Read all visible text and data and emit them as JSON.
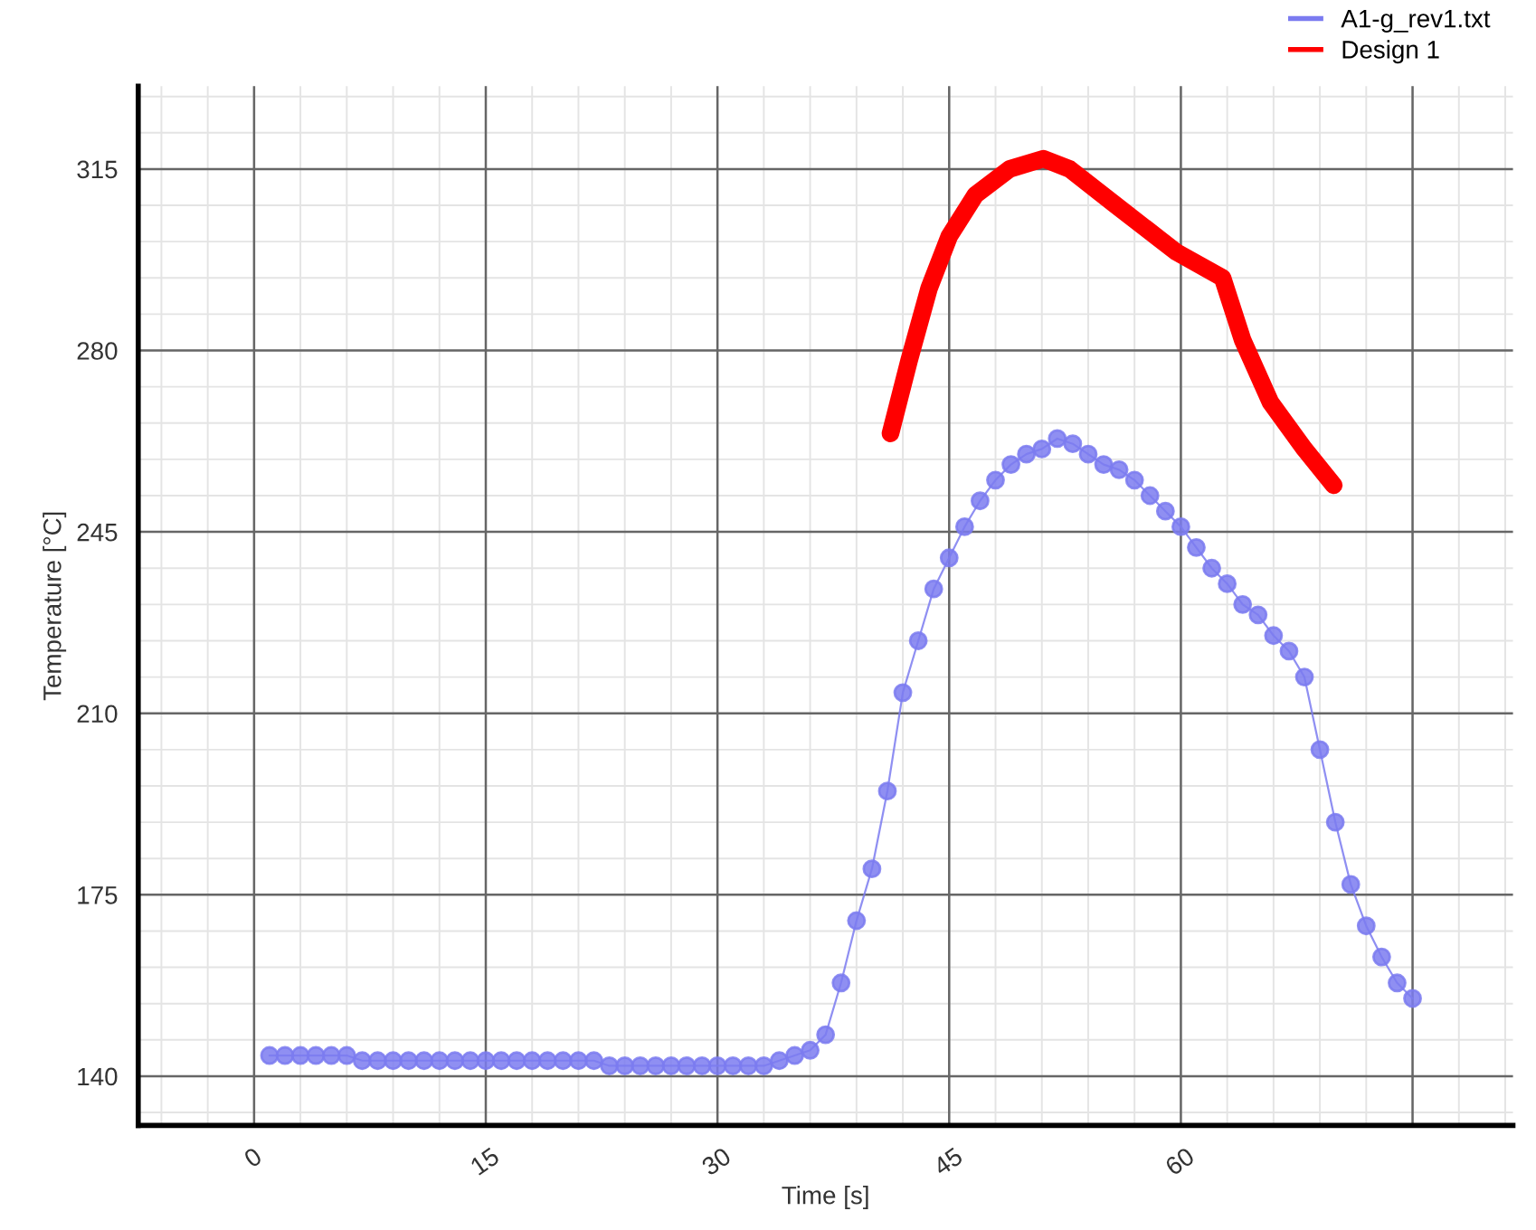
{
  "chart_data": {
    "type": "line",
    "xlabel": "Time [s]",
    "ylabel": "Temperature [°C]",
    "xlim": [
      -7.5,
      81.5
    ],
    "ylim": [
      130.5,
      331
    ],
    "xticks": [
      0,
      15,
      30,
      45,
      60,
      {
        "value": 75,
        "label": null
      }
    ],
    "yticks": [
      140,
      175,
      210,
      245,
      280,
      315
    ],
    "grid": true,
    "legend": "top right",
    "series": [
      {
        "name": "A1-g_rev1.txt",
        "color": "#7b7bf0",
        "marker": "circle",
        "x": [
          1,
          2,
          3,
          4,
          5,
          6,
          7,
          8,
          9,
          10,
          11,
          12,
          13,
          14,
          15,
          16,
          17,
          18,
          19,
          20,
          21,
          22,
          23,
          24,
          25,
          26,
          27,
          28,
          29,
          30,
          31,
          32,
          33,
          34,
          35,
          36,
          37,
          38,
          39,
          40,
          41,
          42,
          43,
          44,
          45,
          46,
          47,
          48,
          49,
          50,
          51,
          52,
          53,
          54,
          55,
          56,
          57,
          58,
          59,
          60,
          61,
          62,
          63,
          64,
          65,
          66,
          67,
          68,
          69,
          70,
          71,
          72,
          73,
          74,
          75
        ],
        "values": [
          144,
          144,
          144,
          144,
          144,
          144,
          143,
          143,
          143,
          143,
          143,
          143,
          143,
          143,
          143,
          143,
          143,
          143,
          143,
          143,
          143,
          143,
          142,
          142,
          142,
          142,
          142,
          142,
          142,
          142,
          142,
          142,
          142,
          143,
          144,
          145,
          148,
          158,
          170,
          180,
          195,
          214,
          224,
          234,
          240,
          246,
          251,
          255,
          258,
          260,
          261,
          263,
          262,
          260,
          258,
          257,
          255,
          252,
          249,
          246,
          242,
          238,
          235,
          231,
          229,
          225,
          222,
          217,
          203,
          189,
          177,
          169,
          163,
          158,
          155
        ]
      },
      {
        "name": "Design 1",
        "color": "#ff0000",
        "marker": "none",
        "x": [
          41.2,
          42.4,
          43.7,
          45,
          46.7,
          48.9,
          51.1,
          52.8,
          55.8,
          59.7,
          62.7,
          64,
          65.8,
          68,
          69.9
        ],
        "values": [
          264,
          278,
          292,
          302,
          310,
          315,
          317,
          315,
          308,
          299,
          294,
          282,
          270,
          261,
          254
        ]
      }
    ]
  }
}
